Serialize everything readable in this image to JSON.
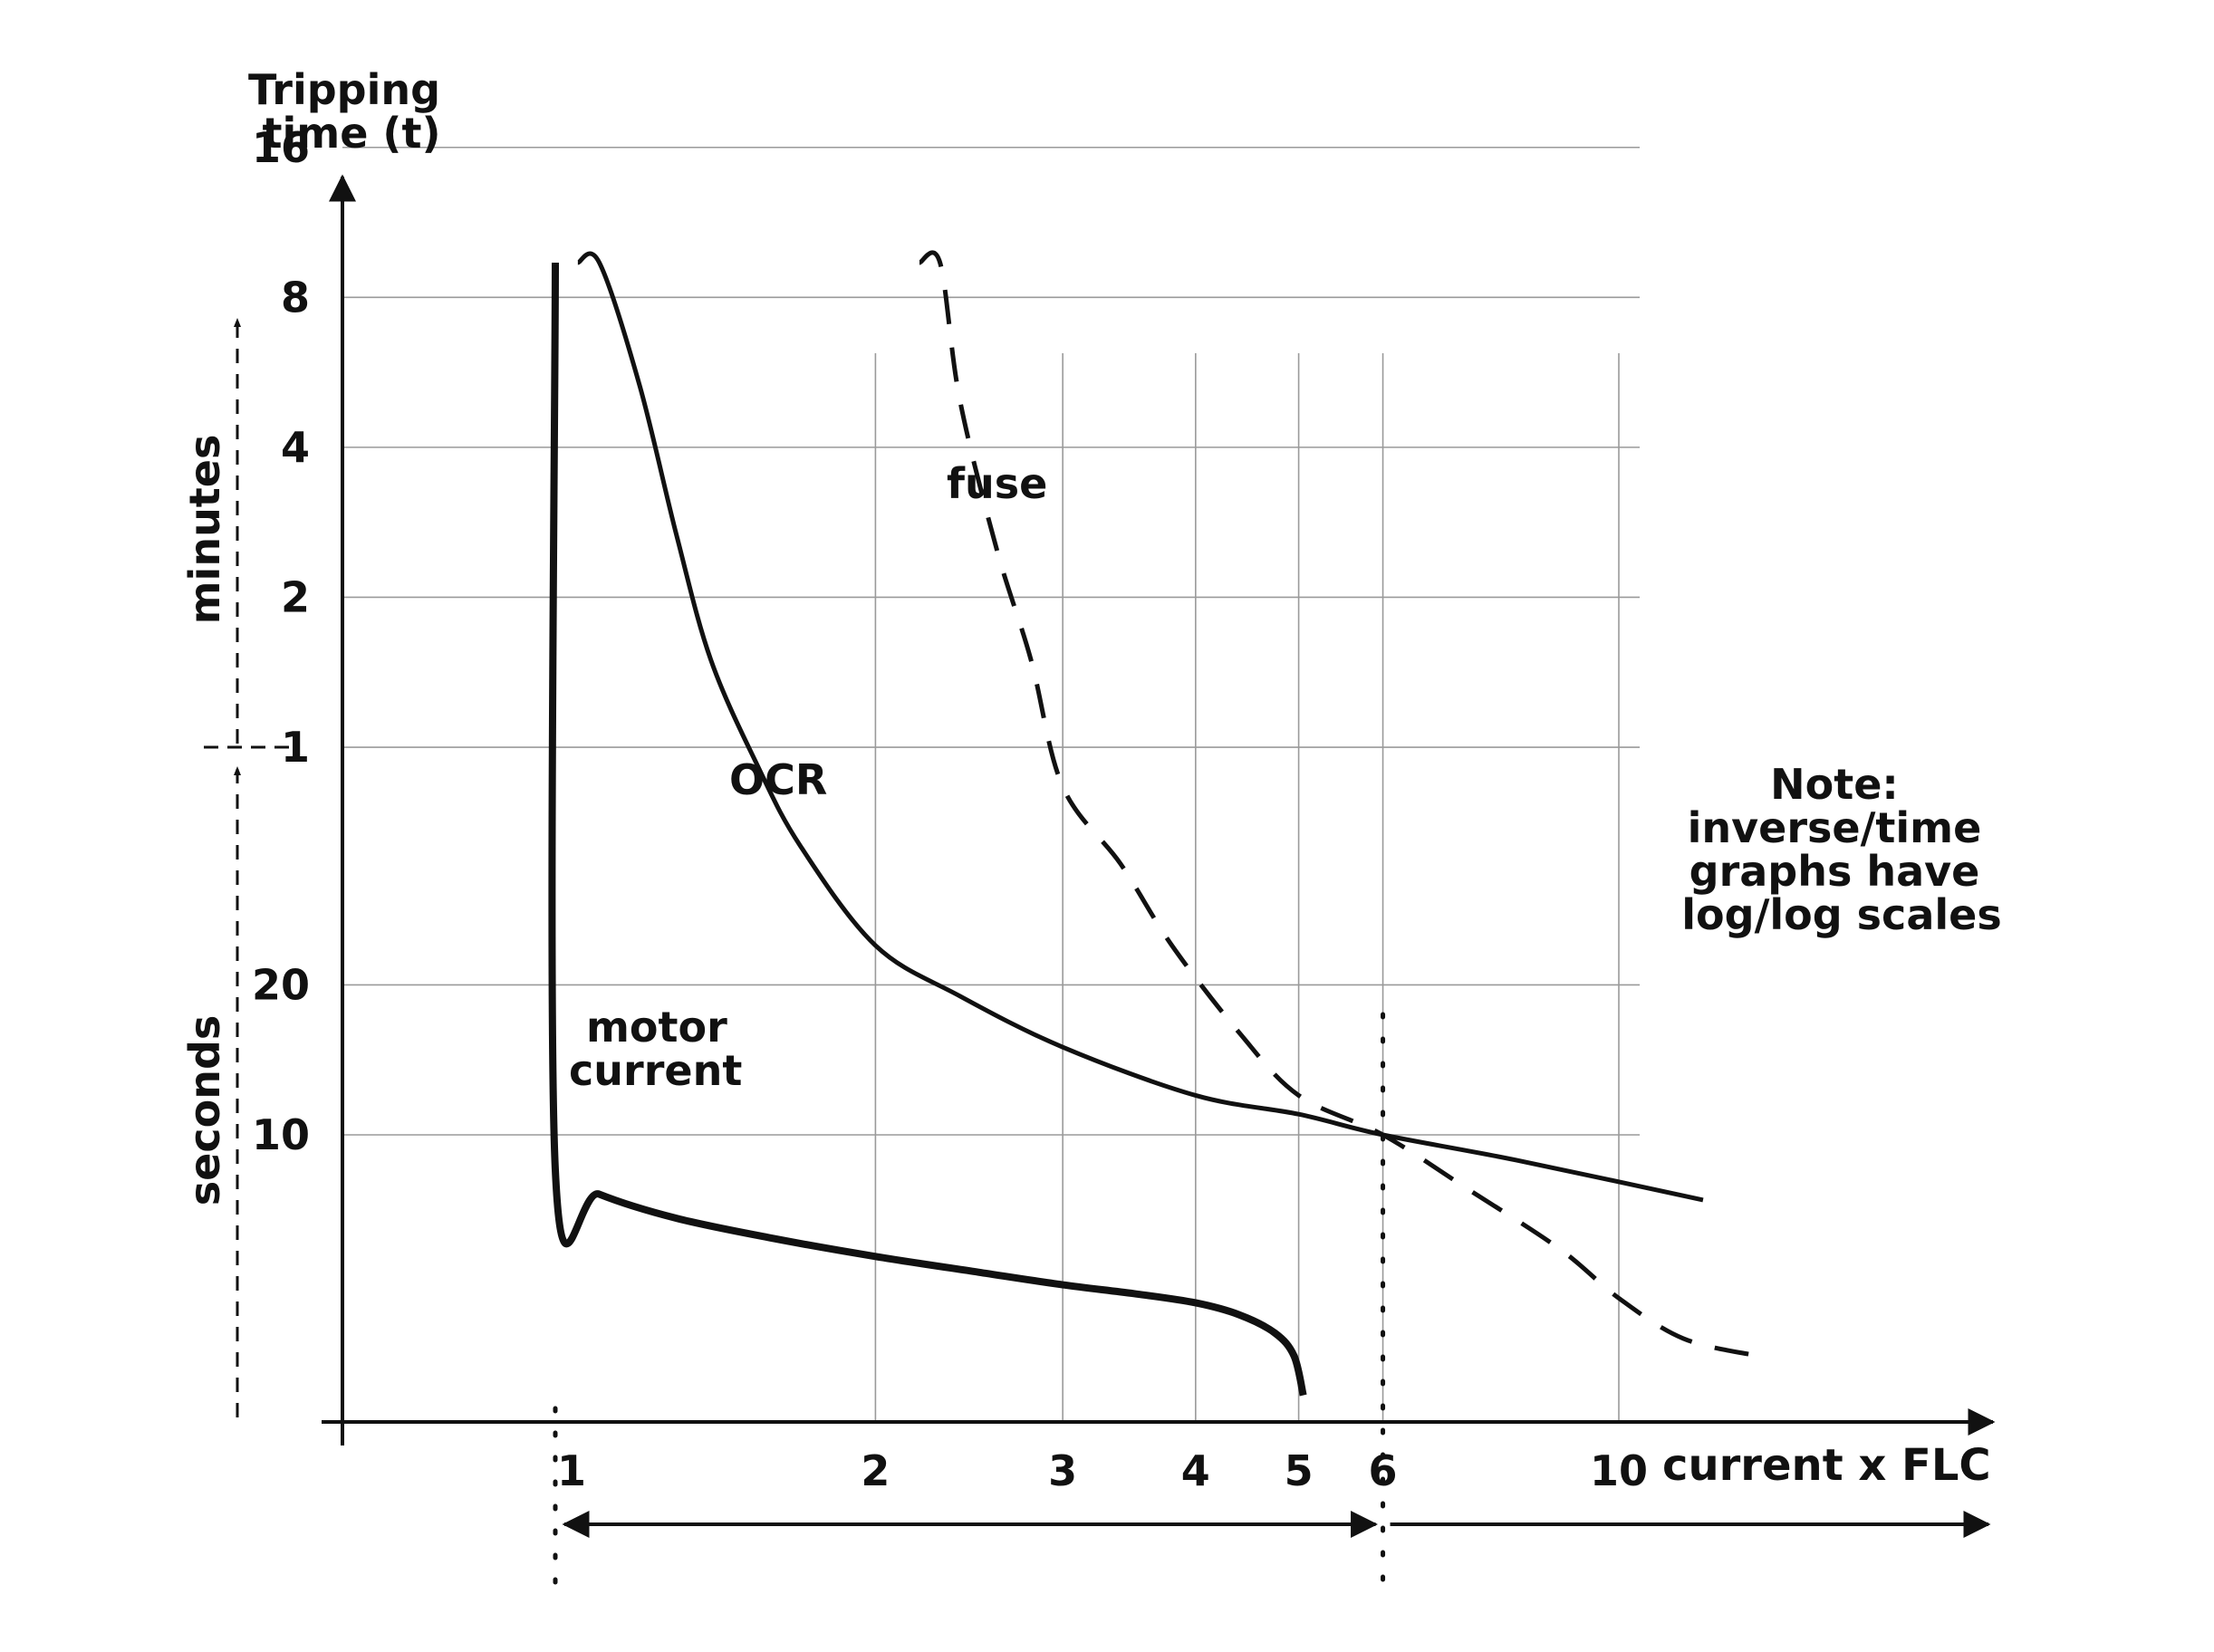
{
  "chart_data": {
    "type": "line",
    "scale": "log-log",
    "grid": true,
    "ylabel": [
      "Tripping",
      "time (t)"
    ],
    "xlabel": "current x FLC",
    "x_ticks": [
      1,
      2,
      3,
      4,
      5,
      6,
      10
    ],
    "x_tick_labels": [
      "1",
      "2",
      "3",
      "4",
      "5",
      "6",
      "10"
    ],
    "x_gridlines": [
      2,
      3,
      4,
      5,
      6,
      10
    ],
    "y_ticks_seconds": [
      {
        "seconds": 10,
        "label": "10"
      },
      {
        "seconds": 20,
        "label": "20"
      },
      {
        "seconds": 60,
        "label": "1"
      },
      {
        "seconds": 120,
        "label": "2"
      },
      {
        "seconds": 240,
        "label": "4"
      },
      {
        "seconds": 480,
        "label": "8"
      },
      {
        "seconds": 960,
        "label": "16"
      }
    ],
    "y_groups": [
      {
        "label": "minutes",
        "from_seconds": 60,
        "to_seconds": 1300
      },
      {
        "label": "seconds",
        "from_seconds": 3,
        "to_seconds": 60
      }
    ],
    "range_arrows": [
      {
        "from": 1,
        "to": 6
      },
      {
        "from": 6,
        "to": 15
      }
    ],
    "series": [
      {
        "name": "motor current",
        "style": "solid-thick",
        "points": [
          [
            1.0,
            1200
          ],
          [
            1.0,
            8.5
          ],
          [
            1.1,
            7.6
          ],
          [
            1.3,
            6.8
          ],
          [
            1.6,
            6.2
          ],
          [
            2.0,
            5.7
          ],
          [
            2.5,
            5.3
          ],
          [
            3.0,
            5.0
          ],
          [
            3.5,
            4.8
          ],
          [
            4.0,
            4.6
          ],
          [
            4.4,
            4.35
          ],
          [
            4.75,
            4.0
          ],
          [
            4.95,
            3.6
          ],
          [
            5.05,
            3.0
          ]
        ]
      },
      {
        "name": "OCR",
        "style": "solid",
        "points": [
          [
            1.05,
            1500
          ],
          [
            1.1,
            700
          ],
          [
            1.2,
            320
          ],
          [
            1.3,
            160
          ],
          [
            1.4,
            90
          ],
          [
            1.55,
            55
          ],
          [
            1.7,
            38
          ],
          [
            2.0,
            24
          ],
          [
            2.4,
            19
          ],
          [
            3.0,
            15
          ],
          [
            4.0,
            12
          ],
          [
            5.0,
            11
          ],
          [
            6.0,
            10
          ],
          [
            8.0,
            8.9
          ],
          [
            12.0,
            7.4
          ]
        ]
      },
      {
        "name": "fuse",
        "style": "dashed",
        "points": [
          [
            2.2,
            1500
          ],
          [
            2.3,
            680
          ],
          [
            2.4,
            300
          ],
          [
            2.6,
            150
          ],
          [
            2.8,
            90
          ],
          [
            3.0,
            50
          ],
          [
            3.4,
            35
          ],
          [
            3.8,
            24
          ],
          [
            4.4,
            16
          ],
          [
            5.0,
            12
          ],
          [
            6.0,
            10
          ],
          [
            7.2,
            7.8
          ],
          [
            8.8,
            5.9
          ],
          [
            10.0,
            4.7
          ],
          [
            11.5,
            3.9
          ],
          [
            13.5,
            3.6
          ]
        ]
      }
    ],
    "note": [
      "Note:",
      "inverse/time",
      "graphs have",
      "log/log scales"
    ]
  }
}
